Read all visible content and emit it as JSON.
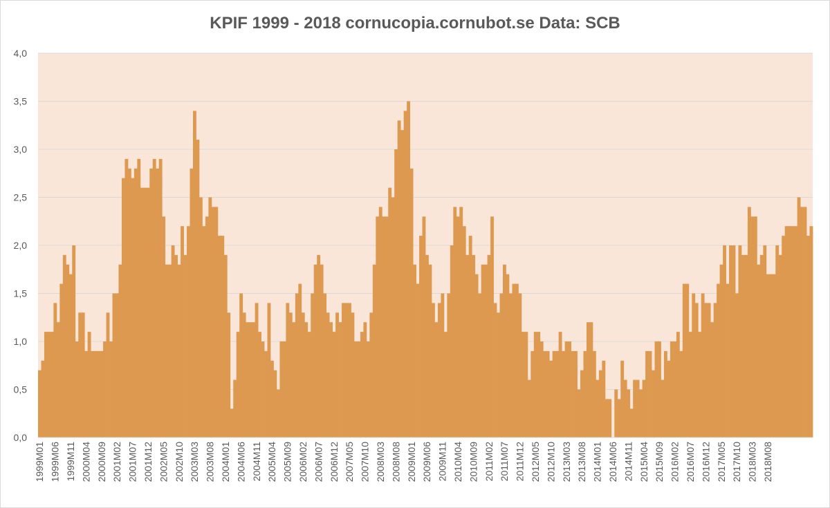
{
  "chart_data": {
    "type": "bar",
    "title": "KPIF 1999 - 2018 cornucopia.cornubot.se Data: SCB",
    "xlabel": "",
    "ylabel": "",
    "ylim": [
      0,
      4
    ],
    "yticks": [
      "0,0",
      "0,5",
      "1,0",
      "1,5",
      "2,0",
      "2,5",
      "3,0",
      "3,5",
      "4,0"
    ],
    "xtick_labels": [
      "1999M01",
      "1999M06",
      "1999M11",
      "2000M04",
      "2000M09",
      "2001M02",
      "2001M07",
      "2001M12",
      "2002M05",
      "2002M10",
      "2003M03",
      "2003M08",
      "2004M01",
      "2004M06",
      "2004M11",
      "2005M04",
      "2005M09",
      "2006M02",
      "2006M07",
      "2006M12",
      "2007M05",
      "2007M10",
      "2008M03",
      "2008M08",
      "2009M01",
      "2009M06",
      "2009M11",
      "2010M04",
      "2010M09",
      "2011M02",
      "2011M07",
      "2011M12",
      "2012M05",
      "2012M10",
      "2013M03",
      "2013M08",
      "2014M01",
      "2014M06",
      "2014M11",
      "2015M04",
      "2015M09",
      "2016M02",
      "2016M07",
      "2016M12",
      "2017M05",
      "2017M10",
      "2018M03",
      "2018M08"
    ],
    "grid": true,
    "legend": "none",
    "colors": {
      "bar": "#de9950",
      "plot_bg": "#f9e6d8",
      "grid": "#d9d9d9",
      "axis_text": "#595959"
    },
    "start_month": "1999M01",
    "values": [
      0.7,
      0.8,
      1.1,
      1.1,
      1.1,
      1.4,
      1.2,
      1.6,
      1.9,
      1.8,
      1.7,
      2.0,
      1.0,
      1.3,
      1.3,
      0.9,
      1.1,
      0.9,
      0.9,
      0.9,
      0.9,
      1.0,
      1.3,
      1.0,
      1.5,
      1.5,
      1.8,
      2.7,
      2.9,
      2.8,
      2.7,
      2.8,
      2.9,
      2.6,
      2.6,
      2.6,
      2.8,
      2.9,
      2.8,
      2.9,
      2.3,
      1.8,
      1.8,
      2.0,
      1.9,
      1.8,
      2.2,
      1.9,
      2.2,
      2.8,
      3.4,
      3.1,
      2.5,
      2.2,
      2.3,
      2.5,
      2.4,
      2.4,
      2.1,
      2.1,
      1.9,
      1.3,
      0.3,
      0.6,
      1.1,
      1.5,
      1.3,
      1.2,
      1.2,
      1.2,
      1.4,
      1.1,
      1.0,
      0.9,
      1.4,
      0.8,
      0.7,
      0.5,
      1.0,
      1.0,
      1.4,
      1.3,
      1.2,
      1.5,
      1.6,
      1.3,
      1.2,
      1.1,
      1.5,
      1.8,
      1.9,
      1.8,
      1.5,
      1.3,
      1.2,
      1.1,
      1.3,
      1.2,
      1.4,
      1.4,
      1.4,
      1.3,
      1.0,
      1.0,
      1.1,
      1.2,
      1.0,
      1.3,
      1.8,
      2.3,
      2.4,
      2.3,
      2.3,
      2.6,
      2.5,
      3.0,
      3.3,
      3.2,
      3.4,
      3.5,
      2.8,
      1.8,
      1.6,
      2.1,
      2.3,
      1.9,
      1.8,
      1.4,
      1.2,
      1.4,
      1.5,
      1.1,
      1.5,
      2.0,
      2.4,
      2.3,
      2.4,
      2.2,
      1.9,
      2.1,
      1.9,
      1.7,
      1.5,
      1.8,
      1.8,
      1.9,
      2.3,
      1.4,
      1.3,
      1.5,
      1.8,
      1.7,
      1.5,
      1.6,
      1.6,
      1.5,
      1.1,
      1.1,
      0.6,
      0.9,
      1.1,
      1.1,
      1.0,
      0.9,
      0.9,
      0.8,
      0.9,
      0.9,
      1.1,
      0.9,
      1.0,
      1.0,
      0.9,
      0.9,
      0.5,
      0.7,
      0.9,
      1.2,
      1.2,
      0.9,
      0.6,
      0.7,
      0.8,
      0.4,
      0.4,
      0.0,
      0.5,
      0.4,
      0.8,
      0.6,
      0.5,
      0.3,
      0.6,
      0.6,
      0.5,
      0.6,
      0.9,
      0.9,
      0.7,
      1.0,
      1.0,
      0.6,
      0.9,
      0.8,
      1.0,
      1.0,
      1.1,
      0.9,
      1.6,
      1.6,
      1.1,
      1.5,
      1.4,
      1.1,
      1.5,
      1.4,
      1.4,
      1.2,
      1.4,
      1.6,
      1.8,
      2.0,
      1.6,
      2.0,
      2.0,
      1.5,
      2.0,
      1.9,
      1.9,
      2.4,
      2.3,
      2.3,
      1.8,
      1.9,
      2.0,
      1.7,
      1.7,
      1.7,
      2.0,
      1.9,
      2.1,
      2.2,
      2.2,
      2.2,
      2.2,
      2.5,
      2.4,
      2.4,
      2.1,
      2.2
    ]
  }
}
